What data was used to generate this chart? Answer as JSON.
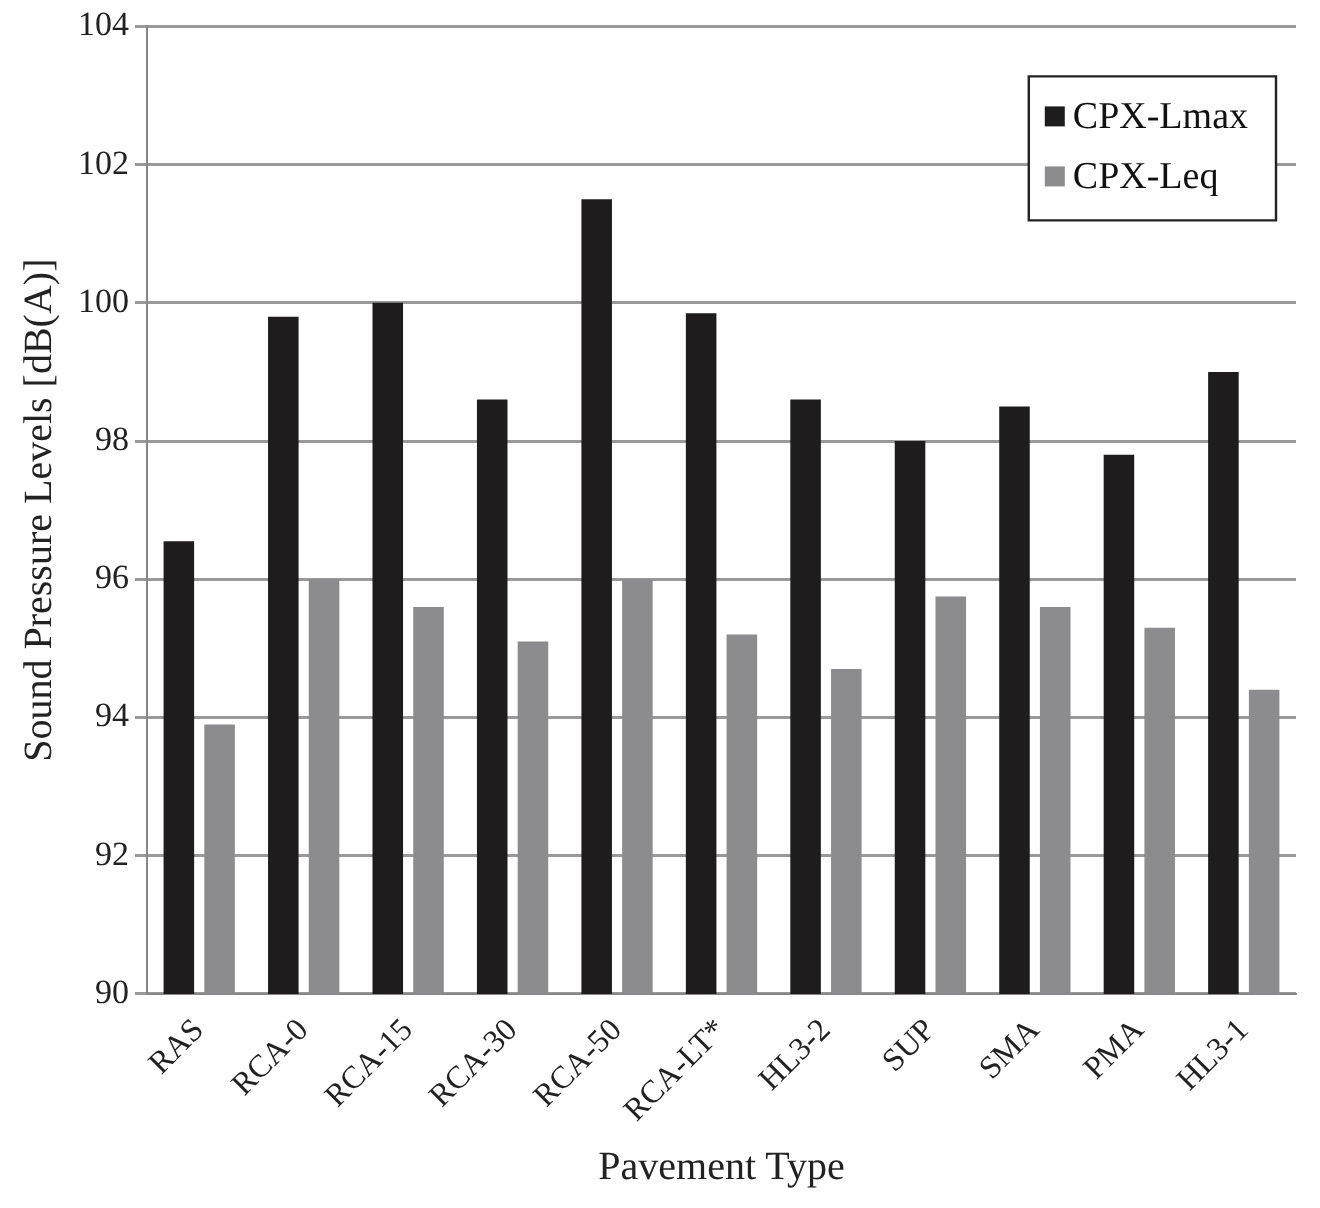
{
  "chart_data": {
    "type": "bar",
    "xlabel": "Pavement Type",
    "ylabel": "Sound Pressure Levels [dB(A)]",
    "categories": [
      "RAS",
      "RCA-0",
      "RCA-15",
      "RCA-30",
      "RCA-50",
      "RCA-LT*",
      "HL3-2",
      "SUP",
      "SMA",
      "PMA",
      "HL3-1"
    ],
    "series": [
      {
        "name": "CPX-Lmax",
        "color": "#1e1c1d",
        "values": [
          96.55,
          99.8,
          100.0,
          98.6,
          101.5,
          99.85,
          98.6,
          98.0,
          98.5,
          97.8,
          99.0
        ]
      },
      {
        "name": "CPX-Leq",
        "color": "#8c8c8e",
        "values": [
          93.9,
          96.0,
          95.6,
          95.1,
          96.0,
          95.2,
          94.7,
          95.75,
          95.6,
          95.3,
          94.4
        ]
      }
    ],
    "ylim": [
      90,
      104
    ],
    "yticks": [
      90,
      92,
      94,
      96,
      98,
      100,
      102,
      104
    ],
    "grid": "y",
    "legend": "top right"
  }
}
